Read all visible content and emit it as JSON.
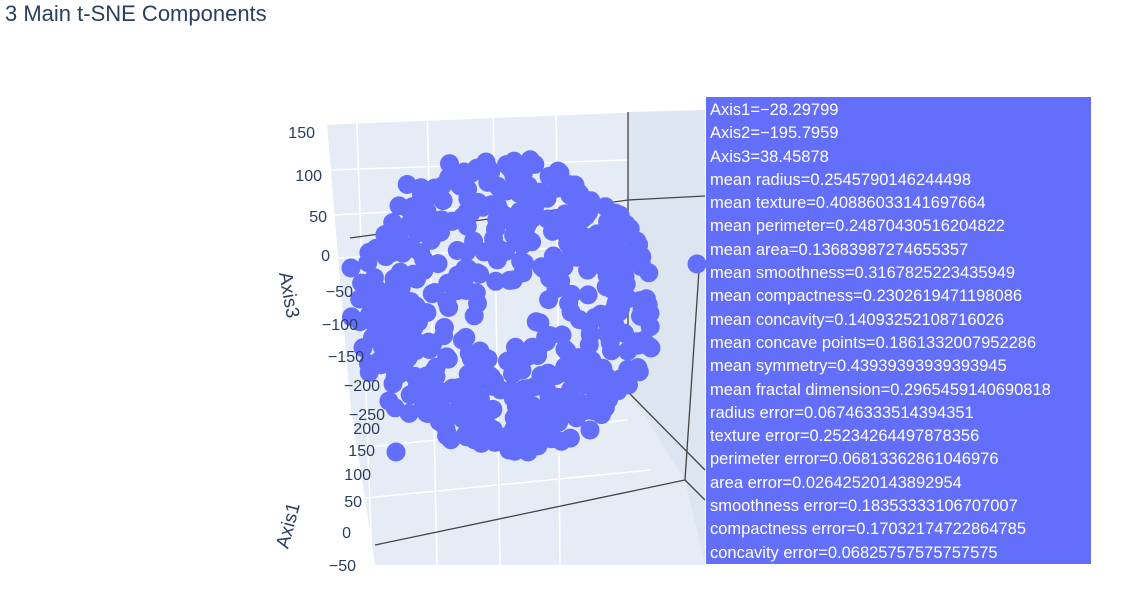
{
  "title": "3 Main t-SNE Components",
  "colors": {
    "marker": "#636efa",
    "scene_bg": "#e5ecf6",
    "text": "#2a3f5f",
    "grid": "#ffffff",
    "axis_line": "#444444"
  },
  "chart_data": {
    "type": "scatter3d",
    "title": "3 Main t-SNE Components",
    "axes": {
      "axis3": {
        "label": "Axis3",
        "ticks": [
          "150",
          "100",
          "50",
          "0",
          "−50",
          "−100",
          "−150",
          "−200",
          "−250"
        ]
      },
      "axis1": {
        "label": "Axis1",
        "ticks": [
          "200",
          "150",
          "100",
          "50",
          "0",
          "−50"
        ]
      }
    },
    "grid": true,
    "marker_color": "#636efa",
    "n_points": 569
  },
  "hover": {
    "lines": [
      "Axis1=−28.29799",
      "Axis2=−195.7959",
      "Axis3=38.45878",
      "mean radius=0.2545790146244498",
      "mean texture=0.40886033141697664",
      "mean perimeter=0.24870430516204822",
      "mean area=0.13683987274655357",
      "mean smoothness=0.3167825223435949",
      "mean compactness=0.2302619471198086",
      "mean concavity=0.14093252108716026",
      "mean concave points=0.1861332007952286",
      "mean symmetry=0.43939393939393945",
      "mean fractal dimension=0.2965459140690818",
      "radius error=0.06746333514394351",
      "texture error=0.25234264497878356",
      "perimeter error=0.06813362861046976",
      "area error=0.02642520143892954",
      "smoothness error=0.18353333106707007",
      "compactness error=0.17032174722864785",
      "concavity error=0.06825757575757575"
    ]
  }
}
